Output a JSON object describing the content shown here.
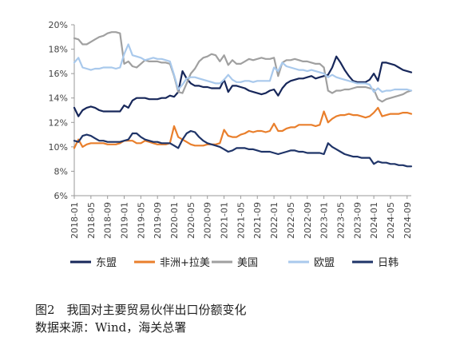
{
  "caption": {
    "title": "图2　我国对主要贸易伙伴出口份额变化",
    "source": "数据来源：Wind，海关总署"
  },
  "chart_data": {
    "type": "line",
    "ylim": [
      6,
      20
    ],
    "yticks": [
      6,
      8,
      10,
      12,
      14,
      16,
      18,
      20
    ],
    "ytick_format": "percent",
    "grid": false,
    "legend_position": "bottom",
    "x": [
      "2018-01",
      "2018-02",
      "2018-03",
      "2018-04",
      "2018-05",
      "2018-06",
      "2018-07",
      "2018-08",
      "2018-09",
      "2018-10",
      "2018-11",
      "2018-12",
      "2019-01",
      "2019-02",
      "2019-03",
      "2019-04",
      "2019-05",
      "2019-06",
      "2019-07",
      "2019-08",
      "2019-09",
      "2019-10",
      "2019-11",
      "2019-12",
      "2020-01",
      "2020-02",
      "2020-03",
      "2020-04",
      "2020-05",
      "2020-06",
      "2020-07",
      "2020-08",
      "2020-09",
      "2020-10",
      "2020-11",
      "2020-12",
      "2021-01",
      "2021-02",
      "2021-03",
      "2021-04",
      "2021-05",
      "2021-06",
      "2021-07",
      "2021-08",
      "2021-09",
      "2021-10",
      "2021-11",
      "2021-12",
      "2022-01",
      "2022-02",
      "2022-03",
      "2022-04",
      "2022-05",
      "2022-06",
      "2022-07",
      "2022-08",
      "2022-09",
      "2022-10",
      "2022-11",
      "2022-12",
      "2023-01",
      "2023-02",
      "2023-03",
      "2023-04",
      "2023-05",
      "2023-06",
      "2023-07",
      "2023-08",
      "2023-09",
      "2023-10",
      "2023-11",
      "2023-12",
      "2024-01",
      "2024-02",
      "2024-03",
      "2024-04",
      "2024-05",
      "2024-06",
      "2024-07",
      "2024-08",
      "2024-09",
      "2024-10"
    ],
    "xtick_labels": [
      "2018-01",
      "2018-05",
      "2018-09",
      "2019-01",
      "2019-05",
      "2019-09",
      "2020-01",
      "2020-05",
      "2020-09",
      "2021-01",
      "2021-05",
      "2021-09",
      "2022-01",
      "2022-05",
      "2022-09",
      "2023-01",
      "2023-05",
      "2023-09",
      "2024-01",
      "2024-05",
      "2024-09"
    ],
    "series": [
      {
        "name": "东盟",
        "color": "#17275a",
        "values": [
          13.2,
          12.5,
          13.0,
          13.2,
          13.3,
          13.2,
          13.0,
          12.9,
          12.9,
          12.9,
          12.9,
          12.9,
          13.4,
          13.2,
          13.8,
          14.0,
          14.0,
          14.0,
          13.9,
          13.9,
          13.9,
          14.0,
          14.0,
          14.2,
          14.1,
          14.5,
          16.2,
          15.6,
          15.2,
          15.0,
          15.0,
          14.9,
          14.9,
          14.8,
          14.8,
          14.8,
          15.5,
          14.5,
          15.0,
          15.0,
          14.9,
          14.8,
          14.6,
          14.5,
          14.4,
          14.3,
          14.4,
          14.6,
          14.7,
          14.2,
          14.8,
          15.2,
          15.4,
          15.5,
          15.6,
          15.6,
          15.7,
          15.8,
          15.6,
          15.7,
          15.8,
          15.9,
          16.5,
          17.4,
          16.9,
          16.3,
          15.8,
          15.4,
          15.3,
          15.3,
          15.3,
          15.5,
          16.0,
          15.4,
          16.9,
          16.9,
          16.8,
          16.7,
          16.5,
          16.3,
          16.2,
          16.1
        ]
      },
      {
        "name": "非洲+拉美",
        "color": "#e97f2c",
        "values": [
          9.9,
          10.6,
          10.0,
          10.2,
          10.3,
          10.3,
          10.3,
          10.3,
          10.2,
          10.2,
          10.2,
          10.3,
          10.5,
          10.5,
          10.5,
          10.3,
          10.3,
          10.5,
          10.4,
          10.3,
          10.2,
          10.2,
          10.2,
          10.3,
          11.7,
          10.8,
          10.6,
          10.4,
          10.2,
          10.1,
          10.1,
          10.1,
          10.2,
          10.2,
          10.2,
          10.3,
          11.4,
          10.9,
          10.8,
          10.8,
          11.0,
          11.1,
          11.3,
          11.2,
          11.3,
          11.3,
          11.2,
          11.3,
          11.9,
          11.3,
          11.3,
          11.5,
          11.6,
          11.6,
          11.8,
          11.8,
          11.8,
          11.8,
          11.7,
          11.8,
          12.9,
          12.0,
          12.3,
          12.5,
          12.6,
          12.6,
          12.7,
          12.6,
          12.6,
          12.5,
          12.4,
          12.5,
          12.8,
          13.2,
          12.5,
          12.6,
          12.7,
          12.7,
          12.7,
          12.8,
          12.8,
          12.7
        ]
      },
      {
        "name": "美国",
        "color": "#a0a0a0",
        "values": [
          18.9,
          18.8,
          18.4,
          18.4,
          18.6,
          18.8,
          19.0,
          19.1,
          19.3,
          19.4,
          19.4,
          19.3,
          16.8,
          17.0,
          16.6,
          16.5,
          16.8,
          17.1,
          17.0,
          17.0,
          17.0,
          16.9,
          16.9,
          16.8,
          15.8,
          14.5,
          14.4,
          15.2,
          16.0,
          16.4,
          17.0,
          17.3,
          17.4,
          17.6,
          17.5,
          17.0,
          17.5,
          16.7,
          17.1,
          16.8,
          16.8,
          17.0,
          17.2,
          17.1,
          17.2,
          17.3,
          17.2,
          17.2,
          17.3,
          15.8,
          16.9,
          17.1,
          17.1,
          17.2,
          17.1,
          17.0,
          17.0,
          16.9,
          16.8,
          16.8,
          16.5,
          14.6,
          14.4,
          14.6,
          14.6,
          14.7,
          14.7,
          14.8,
          14.9,
          14.9,
          14.9,
          14.8,
          14.7,
          13.9,
          13.7,
          13.9,
          14.0,
          14.1,
          14.2,
          14.3,
          14.5,
          14.6
        ]
      },
      {
        "name": "欧盟",
        "color": "#a9c9ec",
        "values": [
          16.9,
          17.3,
          16.5,
          16.4,
          16.3,
          16.4,
          16.4,
          16.5,
          16.5,
          16.5,
          16.4,
          16.5,
          17.6,
          18.4,
          17.5,
          17.4,
          17.3,
          17.1,
          17.2,
          17.3,
          17.2,
          17.2,
          17.1,
          17.0,
          15.9,
          14.7,
          15.1,
          15.6,
          15.7,
          15.7,
          15.6,
          15.5,
          15.4,
          15.3,
          15.2,
          15.2,
          15.5,
          15.9,
          15.5,
          15.3,
          15.3,
          15.4,
          15.4,
          15.3,
          15.4,
          15.4,
          15.4,
          15.4,
          16.5,
          16.2,
          16.9,
          16.6,
          16.5,
          16.4,
          16.3,
          16.3,
          16.2,
          16.3,
          16.2,
          16.1,
          16.0,
          15.7,
          15.9,
          15.7,
          15.6,
          15.5,
          15.4,
          15.3,
          15.2,
          15.2,
          15.2,
          15.1,
          14.5,
          14.8,
          14.5,
          14.6,
          14.6,
          14.7,
          14.7,
          14.7,
          14.7,
          14.6
        ]
      },
      {
        "name": "日韩",
        "color": "#1f3468",
        "values": [
          10.5,
          10.4,
          10.9,
          11.0,
          10.9,
          10.7,
          10.5,
          10.5,
          10.4,
          10.4,
          10.4,
          10.4,
          10.5,
          10.6,
          11.1,
          11.1,
          10.8,
          10.6,
          10.5,
          10.4,
          10.4,
          10.3,
          10.3,
          10.3,
          10.1,
          9.9,
          10.6,
          11.1,
          11.3,
          11.2,
          10.8,
          10.5,
          10.3,
          10.2,
          10.1,
          10.0,
          9.8,
          9.6,
          9.7,
          9.9,
          9.9,
          9.9,
          9.8,
          9.8,
          9.7,
          9.6,
          9.6,
          9.6,
          9.5,
          9.4,
          9.5,
          9.6,
          9.7,
          9.7,
          9.6,
          9.6,
          9.5,
          9.5,
          9.5,
          9.5,
          9.4,
          10.3,
          10.0,
          9.8,
          9.6,
          9.4,
          9.3,
          9.2,
          9.2,
          9.1,
          9.1,
          9.1,
          8.6,
          8.8,
          8.7,
          8.7,
          8.6,
          8.6,
          8.5,
          8.5,
          8.4,
          8.4
        ]
      }
    ]
  }
}
